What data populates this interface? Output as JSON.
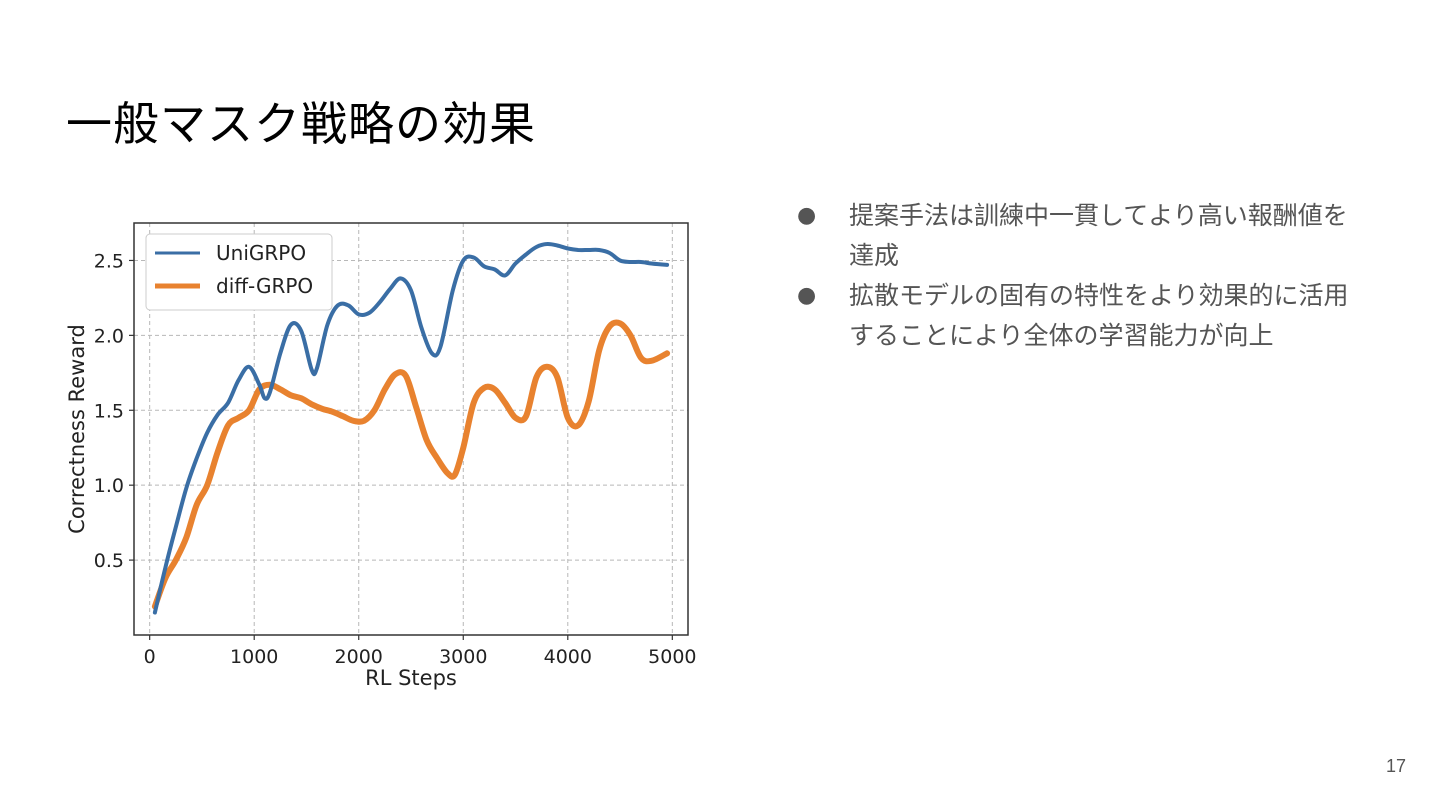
{
  "slide": {
    "title": "一般マスク戦略の効果",
    "page_number": "17"
  },
  "bullets": [
    "提案手法は訓練中一貫してより高い報酬値を達成",
    "拡散モデルの固有の特性をより効果的に活用することにより全体の学習能力が向上"
  ],
  "chart_data": {
    "type": "line",
    "xlabel": "RL Steps",
    "ylabel": "Correctness Reward",
    "xlim": [
      -150,
      5150
    ],
    "ylim": [
      0.0,
      2.75
    ],
    "xticks": [
      0,
      1000,
      2000,
      3000,
      4000,
      5000
    ],
    "yticks": [
      0.5,
      1.0,
      1.5,
      2.0,
      2.5
    ],
    "xtick_labels": [
      "0",
      "1000",
      "2000",
      "3000",
      "4000",
      "5000"
    ],
    "ytick_labels": [
      "0.5",
      "1.0",
      "1.5",
      "2.0",
      "2.5"
    ],
    "grid": true,
    "legend_position": "top-left",
    "series": [
      {
        "name": "UniGRPO",
        "color": "#3a6ea5",
        "points": [
          [
            50,
            0.15
          ],
          [
            150,
            0.45
          ],
          [
            250,
            0.72
          ],
          [
            350,
            0.98
          ],
          [
            450,
            1.18
          ],
          [
            550,
            1.35
          ],
          [
            650,
            1.47
          ],
          [
            750,
            1.55
          ],
          [
            850,
            1.7
          ],
          [
            950,
            1.79
          ],
          [
            1050,
            1.67
          ],
          [
            1100,
            1.58
          ],
          [
            1150,
            1.62
          ],
          [
            1250,
            1.88
          ],
          [
            1350,
            2.07
          ],
          [
            1450,
            2.03
          ],
          [
            1550,
            1.77
          ],
          [
            1600,
            1.78
          ],
          [
            1700,
            2.07
          ],
          [
            1800,
            2.2
          ],
          [
            1900,
            2.2
          ],
          [
            2000,
            2.14
          ],
          [
            2100,
            2.15
          ],
          [
            2200,
            2.22
          ],
          [
            2300,
            2.31
          ],
          [
            2400,
            2.38
          ],
          [
            2500,
            2.3
          ],
          [
            2600,
            2.05
          ],
          [
            2700,
            1.88
          ],
          [
            2780,
            1.92
          ],
          [
            2900,
            2.3
          ],
          [
            3000,
            2.5
          ],
          [
            3100,
            2.52
          ],
          [
            3200,
            2.46
          ],
          [
            3300,
            2.44
          ],
          [
            3400,
            2.4
          ],
          [
            3500,
            2.48
          ],
          [
            3600,
            2.54
          ],
          [
            3700,
            2.59
          ],
          [
            3800,
            2.61
          ],
          [
            3900,
            2.6
          ],
          [
            4000,
            2.58
          ],
          [
            4100,
            2.57
          ],
          [
            4200,
            2.57
          ],
          [
            4300,
            2.57
          ],
          [
            4400,
            2.55
          ],
          [
            4500,
            2.5
          ],
          [
            4600,
            2.49
          ],
          [
            4700,
            2.49
          ],
          [
            4800,
            2.48
          ],
          [
            4950,
            2.47
          ]
        ]
      },
      {
        "name": "diff-GRPO",
        "color": "#e8822f",
        "points": [
          [
            50,
            0.19
          ],
          [
            150,
            0.38
          ],
          [
            250,
            0.5
          ],
          [
            350,
            0.65
          ],
          [
            450,
            0.87
          ],
          [
            550,
            1.0
          ],
          [
            650,
            1.22
          ],
          [
            750,
            1.4
          ],
          [
            850,
            1.45
          ],
          [
            950,
            1.5
          ],
          [
            1050,
            1.64
          ],
          [
            1150,
            1.67
          ],
          [
            1250,
            1.64
          ],
          [
            1350,
            1.6
          ],
          [
            1450,
            1.58
          ],
          [
            1550,
            1.54
          ],
          [
            1650,
            1.51
          ],
          [
            1750,
            1.49
          ],
          [
            1850,
            1.46
          ],
          [
            1950,
            1.43
          ],
          [
            2050,
            1.43
          ],
          [
            2150,
            1.5
          ],
          [
            2250,
            1.64
          ],
          [
            2350,
            1.74
          ],
          [
            2450,
            1.73
          ],
          [
            2550,
            1.52
          ],
          [
            2650,
            1.3
          ],
          [
            2750,
            1.18
          ],
          [
            2850,
            1.08
          ],
          [
            2920,
            1.07
          ],
          [
            3000,
            1.25
          ],
          [
            3100,
            1.55
          ],
          [
            3200,
            1.65
          ],
          [
            3300,
            1.64
          ],
          [
            3400,
            1.55
          ],
          [
            3500,
            1.45
          ],
          [
            3600,
            1.46
          ],
          [
            3700,
            1.72
          ],
          [
            3800,
            1.79
          ],
          [
            3900,
            1.72
          ],
          [
            4000,
            1.45
          ],
          [
            4100,
            1.4
          ],
          [
            4200,
            1.56
          ],
          [
            4300,
            1.9
          ],
          [
            4400,
            2.06
          ],
          [
            4500,
            2.08
          ],
          [
            4600,
            2.0
          ],
          [
            4700,
            1.85
          ],
          [
            4800,
            1.83
          ],
          [
            4950,
            1.88
          ]
        ]
      }
    ]
  }
}
